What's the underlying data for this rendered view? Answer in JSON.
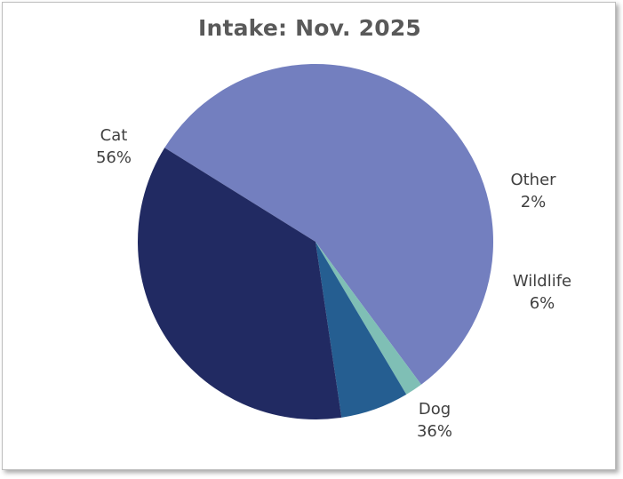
{
  "chart_data": {
    "type": "pie",
    "title": "Intake: Nov. 2025",
    "slices": [
      {
        "label": "Cat",
        "percent_label": "56%",
        "value": 56,
        "color": "#737fbf"
      },
      {
        "label": "Other",
        "percent_label": "2%",
        "value": 1.6,
        "color": "#7fbfb5"
      },
      {
        "label": "Wildlife",
        "percent_label": "6%",
        "value": 6.2,
        "color": "#255e91"
      },
      {
        "label": "Dog",
        "percent_label": "36%",
        "value": 36.2,
        "color": "#212a62"
      }
    ],
    "legend": "none",
    "grid": false
  }
}
